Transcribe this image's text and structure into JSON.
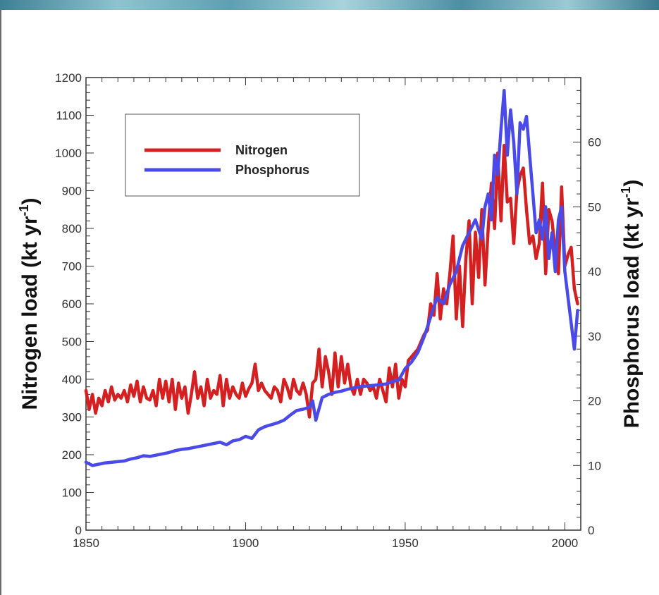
{
  "chart_data": {
    "type": "line",
    "title": "",
    "xlabel": "",
    "ylabel": "Nitrogen load (kt yr",
    "ylabel_sup": "-1",
    "ylabel_close": ")",
    "y2label": "Phosphorus load (kt yr",
    "y2label_sup": "-1",
    "y2label_close": ")",
    "xlim": [
      1850,
      2005
    ],
    "ylim": [
      0,
      1200
    ],
    "y2lim": [
      0,
      70
    ],
    "xticks": [
      "1850",
      "1900",
      "1950",
      "2000"
    ],
    "yticks": [
      "0",
      "100",
      "200",
      "300",
      "400",
      "500",
      "600",
      "700",
      "800",
      "900",
      "1000",
      "1100",
      "1200"
    ],
    "y2ticks": [
      "0",
      "10",
      "20",
      "30",
      "40",
      "50",
      "60"
    ],
    "grid": false,
    "legend_position": "top-left",
    "colors": {
      "nitrogen": "#d42020",
      "phosphorus": "#4a4ae8"
    },
    "series": [
      {
        "name": "Nitrogen",
        "axis": "left",
        "x": [
          1850,
          1851,
          1852,
          1853,
          1854,
          1855,
          1856,
          1857,
          1858,
          1859,
          1860,
          1861,
          1862,
          1863,
          1864,
          1865,
          1866,
          1867,
          1868,
          1869,
          1870,
          1871,
          1872,
          1873,
          1874,
          1875,
          1876,
          1877,
          1878,
          1879,
          1880,
          1881,
          1882,
          1883,
          1884,
          1885,
          1886,
          1887,
          1888,
          1889,
          1890,
          1891,
          1892,
          1893,
          1894,
          1895,
          1896,
          1897,
          1898,
          1899,
          1900,
          1901,
          1902,
          1903,
          1904,
          1905,
          1906,
          1907,
          1908,
          1909,
          1910,
          1911,
          1912,
          1913,
          1914,
          1915,
          1916,
          1917,
          1918,
          1919,
          1920,
          1921,
          1922,
          1923,
          1924,
          1925,
          1926,
          1927,
          1928,
          1929,
          1930,
          1931,
          1932,
          1933,
          1934,
          1935,
          1936,
          1937,
          1938,
          1939,
          1940,
          1941,
          1942,
          1943,
          1944,
          1945,
          1946,
          1947,
          1948,
          1949,
          1950,
          1951,
          1952,
          1953,
          1954,
          1955,
          1956,
          1957,
          1958,
          1959,
          1960,
          1961,
          1962,
          1963,
          1964,
          1965,
          1966,
          1967,
          1968,
          1969,
          1970,
          1971,
          1972,
          1973,
          1974,
          1975,
          1976,
          1977,
          1978,
          1979,
          1980,
          1981,
          1982,
          1983,
          1984,
          1985,
          1986,
          1987,
          1988,
          1989,
          1990,
          1991,
          1992,
          1993,
          1994,
          1995,
          1996,
          1997,
          1998,
          1999,
          2000,
          2001,
          2002,
          2003,
          2004
        ],
        "values": [
          370,
          320,
          360,
          310,
          350,
          330,
          370,
          340,
          380,
          345,
          360,
          350,
          370,
          340,
          385,
          355,
          395,
          340,
          380,
          350,
          345,
          370,
          330,
          400,
          350,
          395,
          340,
          400,
          320,
          390,
          350,
          380,
          310,
          360,
          420,
          350,
          380,
          330,
          400,
          350,
          370,
          360,
          410,
          330,
          400,
          350,
          380,
          360,
          350,
          390,
          355,
          375,
          390,
          440,
          370,
          390,
          370,
          360,
          350,
          380,
          370,
          340,
          400,
          380,
          350,
          400,
          370,
          360,
          390,
          360,
          300,
          390,
          400,
          480,
          380,
          460,
          420,
          360,
          470,
          380,
          460,
          390,
          440,
          380,
          360,
          400,
          360,
          400,
          390,
          370,
          380,
          350,
          400,
          370,
          340,
          430,
          380,
          440,
          350,
          400,
          380,
          450,
          460,
          470,
          480,
          500,
          520,
          530,
          600,
          570,
          680,
          560,
          640,
          600,
          680,
          780,
          560,
          700,
          540,
          720,
          820,
          600,
          790,
          670,
          850,
          650,
          800,
          920,
          800,
          1000,
          820,
          1020,
          870,
          880,
          760,
          900,
          940,
          960,
          850,
          760,
          780,
          720,
          760,
          920,
          680,
          850,
          820,
          740,
          680,
          910,
          700,
          730,
          750,
          640,
          600
        ]
      },
      {
        "name": "Phosphorus",
        "axis": "right",
        "x": [
          1850,
          1852,
          1854,
          1856,
          1858,
          1860,
          1862,
          1864,
          1866,
          1868,
          1870,
          1872,
          1874,
          1876,
          1878,
          1880,
          1882,
          1884,
          1886,
          1888,
          1890,
          1892,
          1894,
          1896,
          1898,
          1900,
          1902,
          1904,
          1906,
          1908,
          1910,
          1912,
          1914,
          1916,
          1918,
          1920,
          1921,
          1922,
          1924,
          1926,
          1928,
          1930,
          1932,
          1934,
          1936,
          1938,
          1940,
          1942,
          1944,
          1946,
          1948,
          1950,
          1952,
          1954,
          1956,
          1958,
          1960,
          1962,
          1964,
          1966,
          1968,
          1970,
          1972,
          1974,
          1975,
          1976,
          1977,
          1978,
          1979,
          1980,
          1981,
          1982,
          1983,
          1984,
          1985,
          1986,
          1987,
          1988,
          1989,
          1990,
          1991,
          1992,
          1993,
          1994,
          1995,
          1996,
          1997,
          1998,
          1999,
          2000,
          2001,
          2002,
          2003,
          2004
        ],
        "values": [
          10.5,
          10,
          10.2,
          10.4,
          10.5,
          10.6,
          10.7,
          11,
          11.2,
          11.5,
          11.4,
          11.6,
          11.8,
          12,
          12.3,
          12.5,
          12.6,
          12.8,
          13,
          13.2,
          13.4,
          13.6,
          13.2,
          13.8,
          14,
          14.5,
          14.2,
          15.5,
          16,
          16.3,
          16.6,
          17,
          17.8,
          18.5,
          18.7,
          19,
          20,
          17,
          20.5,
          21,
          21.3,
          21.5,
          21.8,
          22,
          22.2,
          22.3,
          22.4,
          22.5,
          22.6,
          23,
          23.2,
          25,
          26,
          27.5,
          30,
          33,
          36,
          35,
          38,
          40,
          44,
          46,
          48,
          45,
          50,
          52,
          48,
          58,
          55,
          62,
          68,
          58,
          65,
          60,
          52,
          63,
          62,
          64,
          58,
          52,
          46,
          48,
          45,
          50,
          42,
          46,
          40,
          48,
          50,
          40,
          36,
          32,
          28,
          34
        ]
      }
    ]
  }
}
